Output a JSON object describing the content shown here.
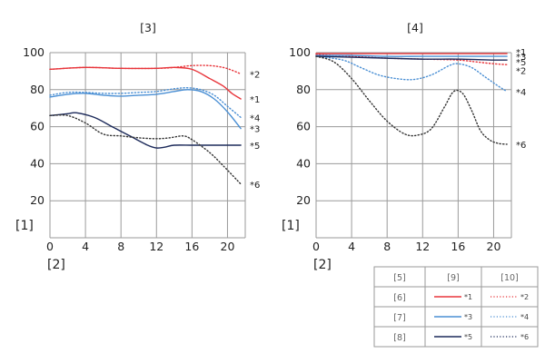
{
  "chart_data": [
    {
      "type": "line",
      "title": "[3]",
      "ylabel": "[1]",
      "xlabel": "[2]",
      "xlim": [
        0,
        22
      ],
      "ylim": [
        0,
        100
      ],
      "xticks": [
        0,
        4,
        8,
        12,
        16,
        20
      ],
      "yticks": [
        20,
        40,
        60,
        80,
        100
      ],
      "grid": true,
      "series": [
        {
          "name": "*1",
          "color": "#e8353b",
          "dash": "solid",
          "points": [
            [
              0,
              91
            ],
            [
              4,
              92
            ],
            [
              8,
              91.5
            ],
            [
              12,
              91.5
            ],
            [
              14,
              92
            ],
            [
              16,
              91
            ],
            [
              18,
              86
            ],
            [
              19.5,
              82
            ],
            [
              20.5,
              78
            ],
            [
              21.5,
              75
            ]
          ]
        },
        {
          "name": "*2",
          "color": "#e8353b",
          "dash": "dotted",
          "points": [
            [
              0,
              91
            ],
            [
              4,
              92
            ],
            [
              8,
              91.5
            ],
            [
              12,
              91.5
            ],
            [
              14,
              92
            ],
            [
              16,
              93
            ],
            [
              18,
              93
            ],
            [
              19.5,
              92
            ],
            [
              20.5,
              90.5
            ],
            [
              21.5,
              88.5
            ]
          ]
        },
        {
          "name": "*3",
          "color": "#4a8fd4",
          "dash": "solid",
          "points": [
            [
              0,
              76
            ],
            [
              2,
              77.5
            ],
            [
              4,
              78
            ],
            [
              6,
              77
            ],
            [
              8,
              76.5
            ],
            [
              10,
              77
            ],
            [
              12,
              77.5
            ],
            [
              14,
              79
            ],
            [
              15.5,
              80
            ],
            [
              17,
              79
            ],
            [
              18.5,
              75
            ],
            [
              20,
              68
            ],
            [
              21.5,
              59
            ]
          ]
        },
        {
          "name": "*4",
          "color": "#4a8fd4",
          "dash": "dotted",
          "points": [
            [
              0,
              77
            ],
            [
              2,
              78.5
            ],
            [
              4,
              78.5
            ],
            [
              6,
              78
            ],
            [
              8,
              78
            ],
            [
              10,
              78.5
            ],
            [
              12,
              79
            ],
            [
              14,
              80.5
            ],
            [
              15.5,
              81
            ],
            [
              17,
              80
            ],
            [
              18.5,
              77
            ],
            [
              20,
              71
            ],
            [
              21.5,
              65
            ]
          ]
        },
        {
          "name": "*5",
          "color": "#1c2a5a",
          "dash": "solid",
          "points": [
            [
              0,
              66
            ],
            [
              2,
              67
            ],
            [
              3,
              67.5
            ],
            [
              5,
              65
            ],
            [
              7,
              60
            ],
            [
              9,
              55
            ],
            [
              11,
              50
            ],
            [
              12,
              48.5
            ],
            [
              13,
              49
            ],
            [
              14,
              50
            ],
            [
              16,
              50
            ],
            [
              18,
              50
            ],
            [
              20,
              50
            ],
            [
              21.5,
              50
            ]
          ]
        },
        {
          "name": "*6",
          "color": "#333333",
          "dash": "dotted",
          "points": [
            [
              0,
              66
            ],
            [
              2,
              66
            ],
            [
              4,
              62
            ],
            [
              6,
              56
            ],
            [
              8,
              55
            ],
            [
              10,
              54
            ],
            [
              12,
              53.5
            ],
            [
              13.5,
              54
            ],
            [
              15,
              55
            ],
            [
              16,
              53
            ],
            [
              18,
              46
            ],
            [
              19.5,
              39
            ],
            [
              21.5,
              29
            ]
          ]
        }
      ]
    },
    {
      "type": "line",
      "title": "[4]",
      "ylabel": "[1]",
      "xlabel": "[2]",
      "xlim": [
        0,
        22
      ],
      "ylim": [
        0,
        100
      ],
      "xticks": [
        0,
        4,
        8,
        12,
        16,
        20
      ],
      "yticks": [
        20,
        40,
        60,
        80,
        100
      ],
      "grid": true,
      "series": [
        {
          "name": "*1",
          "color": "#e8353b",
          "dash": "solid",
          "points": [
            [
              0,
              99.5
            ],
            [
              4,
              99.5
            ],
            [
              8,
              99.5
            ],
            [
              12,
              99.5
            ],
            [
              16,
              99.5
            ],
            [
              20,
              99.5
            ],
            [
              21.5,
              99.5
            ]
          ]
        },
        {
          "name": "*2",
          "color": "#e8353b",
          "dash": "dotted",
          "points": [
            [
              0,
              99
            ],
            [
              4,
              98
            ],
            [
              8,
              97
            ],
            [
              12,
              96.5
            ],
            [
              16,
              96
            ],
            [
              18,
              95
            ],
            [
              20,
              94
            ],
            [
              21.5,
              93.5
            ]
          ]
        },
        {
          "name": "*3",
          "color": "#4a8fd4",
          "dash": "solid",
          "points": [
            [
              0,
              98.5
            ],
            [
              4,
              98.5
            ],
            [
              8,
              98
            ],
            [
              12,
              98
            ],
            [
              16,
              98
            ],
            [
              20,
              98
            ],
            [
              21.5,
              98
            ]
          ]
        },
        {
          "name": "*4",
          "color": "#4a8fd4",
          "dash": "dotted",
          "points": [
            [
              0,
              98
            ],
            [
              3,
              96
            ],
            [
              5,
              92
            ],
            [
              7,
              88
            ],
            [
              9,
              86
            ],
            [
              11,
              85.5
            ],
            [
              13,
              88
            ],
            [
              15,
              93
            ],
            [
              16,
              94
            ],
            [
              17.5,
              92
            ],
            [
              19,
              87
            ],
            [
              20.5,
              82
            ],
            [
              21.5,
              79
            ]
          ]
        },
        {
          "name": "*5",
          "color": "#1c2a5a",
          "dash": "solid",
          "points": [
            [
              0,
              98
            ],
            [
              4,
              97.5
            ],
            [
              8,
              97
            ],
            [
              12,
              96.5
            ],
            [
              16,
              96.5
            ],
            [
              20,
              96
            ],
            [
              21.5,
              96
            ]
          ]
        },
        {
          "name": "*6",
          "color": "#333333",
          "dash": "dotted",
          "points": [
            [
              0,
              98
            ],
            [
              2,
              95
            ],
            [
              4,
              86
            ],
            [
              6,
              74
            ],
            [
              8,
              63
            ],
            [
              10,
              56
            ],
            [
              11.5,
              55.5
            ],
            [
              13,
              59
            ],
            [
              14.5,
              71
            ],
            [
              15.5,
              79
            ],
            [
              16.5,
              78
            ],
            [
              17.5,
              69
            ],
            [
              18.5,
              58
            ],
            [
              19.5,
              53
            ],
            [
              20.5,
              51
            ],
            [
              21.5,
              50.5
            ]
          ]
        }
      ]
    }
  ],
  "legend_table": {
    "header": [
      "[5]",
      "[9]",
      "[10]"
    ],
    "rows": [
      {
        "label": "[6]",
        "a": "*1",
        "b": "*2",
        "color": "#e8353b"
      },
      {
        "label": "[7]",
        "a": "*3",
        "b": "*4",
        "color": "#4a8fd4"
      },
      {
        "label": "[8]",
        "a": "*5",
        "b": "*6",
        "color": "#1c2a5a"
      }
    ]
  }
}
